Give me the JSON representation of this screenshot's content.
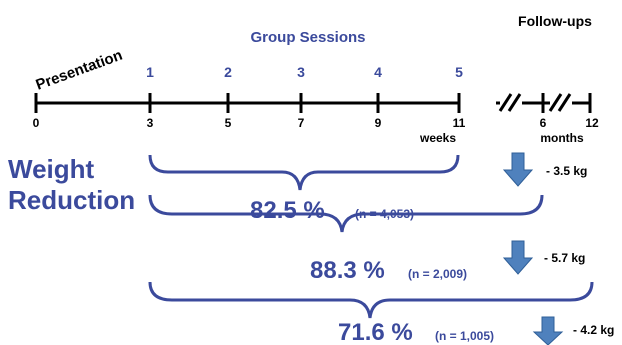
{
  "labels": {
    "presentation": "Presentation",
    "group_sessions": "Group Sessions",
    "follow_ups": "Follow-ups",
    "weight_line1": "Weight",
    "weight_line2": "Reduction",
    "weeks": "weeks",
    "months": "months"
  },
  "session_numbers": [
    "1",
    "2",
    "3",
    "4",
    "5"
  ],
  "week_ticks": [
    "0",
    "3",
    "5",
    "7",
    "9",
    "11"
  ],
  "month_ticks": [
    "6",
    "12"
  ],
  "results": [
    {
      "percent": "82.5 %",
      "n": "(n = 4,053)",
      "delta": "- 3.5 kg"
    },
    {
      "percent": "88.3 %",
      "n": "(n = 2,009)",
      "delta": "- 5.7 kg"
    },
    {
      "percent": "71.6 %",
      "n": "(n = 1,005)",
      "delta": "- 4.2 kg"
    }
  ],
  "colors": {
    "accent": "#3b4a9c",
    "arrow": "#4f81bd",
    "line": "#000000"
  }
}
